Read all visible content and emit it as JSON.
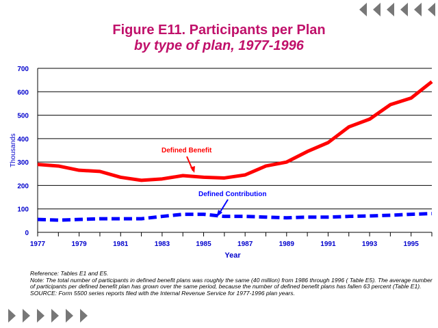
{
  "chart_data": {
    "type": "line",
    "title": "Figure E11.  Participants per Plan",
    "subtitle": "by type of plan, 1977-1996",
    "xlabel": "Year",
    "ylabel": "Thousands",
    "ylim": [
      0,
      700
    ],
    "yticks": [
      "0",
      "100",
      "200",
      "300",
      "400",
      "500",
      "600",
      "700"
    ],
    "xlim": [
      1977,
      1996
    ],
    "xticks": [
      "1977",
      "1979",
      "1981",
      "1983",
      "1985",
      "1987",
      "1989",
      "1991",
      "1993",
      "1995"
    ],
    "x": [
      1977,
      1978,
      1979,
      1980,
      1981,
      1982,
      1983,
      1984,
      1985,
      1986,
      1987,
      1988,
      1989,
      1990,
      1991,
      1992,
      1993,
      1994,
      1995,
      1996
    ],
    "series": [
      {
        "name": "Defined Benefit",
        "color": "#ff0000",
        "style": "solid",
        "values": [
          290,
          283,
          265,
          260,
          235,
          222,
          228,
          242,
          235,
          232,
          245,
          283,
          300,
          345,
          383,
          450,
          483,
          545,
          573,
          643
        ]
      },
      {
        "name": "Defined Contribution",
        "color": "#0000ff",
        "style": "dashed",
        "values": [
          55,
          52,
          55,
          58,
          58,
          58,
          68,
          77,
          77,
          68,
          68,
          65,
          62,
          65,
          65,
          68,
          70,
          73,
          77,
          80
        ]
      }
    ],
    "grid": true
  },
  "notes": {
    "reference": "Reference: Tables  E1  and  E5.",
    "note": "Note: The total number of participants in defined benefit plans was roughly the same (40 million) from 1986 through 1996 ( Table E5).  The average number of participants per defined benefit plan has grown over the same period, because the  number of defined benefit plans has fallen 63 percent (Table E1).",
    "source": "SOURCE: Form 5500 series reports filed with the Internal Revenue Service for 1977-1996 plan years."
  }
}
